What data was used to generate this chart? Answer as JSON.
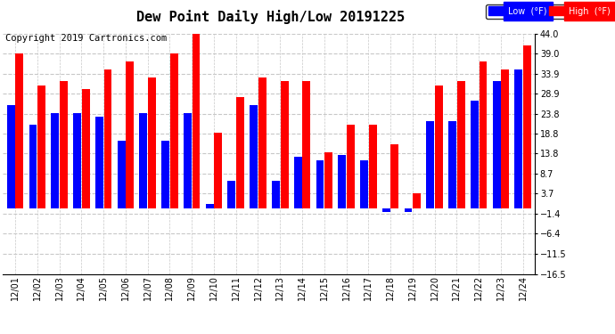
{
  "title": "Dew Point Daily High/Low 20191225",
  "copyright": "Copyright 2019 Cartronics.com",
  "dates": [
    "12/01",
    "12/02",
    "12/03",
    "12/04",
    "12/05",
    "12/06",
    "12/07",
    "12/08",
    "12/09",
    "12/10",
    "12/11",
    "12/12",
    "12/13",
    "12/14",
    "12/15",
    "12/16",
    "12/17",
    "12/18",
    "12/19",
    "12/20",
    "12/21",
    "12/22",
    "12/23",
    "12/24"
  ],
  "high": [
    39.0,
    31.0,
    32.0,
    30.0,
    35.0,
    37.0,
    33.0,
    39.0,
    44.0,
    19.0,
    28.0,
    33.0,
    32.0,
    32.0,
    14.0,
    21.0,
    21.0,
    16.0,
    3.7,
    31.0,
    32.0,
    37.0,
    35.0,
    41.0
  ],
  "low": [
    26.0,
    21.0,
    24.0,
    24.0,
    23.0,
    17.0,
    24.0,
    17.0,
    24.0,
    1.0,
    7.0,
    26.0,
    7.0,
    13.0,
    12.0,
    13.5,
    12.0,
    -1.0,
    -1.0,
    22.0,
    22.0,
    27.0,
    32.0,
    35.0
  ],
  "low_color": "#0000ff",
  "high_color": "#ff0000",
  "background_color": "#ffffff",
  "plot_bg_color": "#ffffff",
  "ylim": [
    -16.5,
    44.0
  ],
  "yticks": [
    -16.5,
    -11.5,
    -6.4,
    -1.4,
    3.7,
    8.7,
    13.8,
    18.8,
    23.8,
    28.9,
    33.9,
    39.0,
    44.0
  ],
  "grid_color": "#c8c8c8",
  "title_fontsize": 11,
  "copyright_fontsize": 7.5,
  "legend_fontsize": 7
}
